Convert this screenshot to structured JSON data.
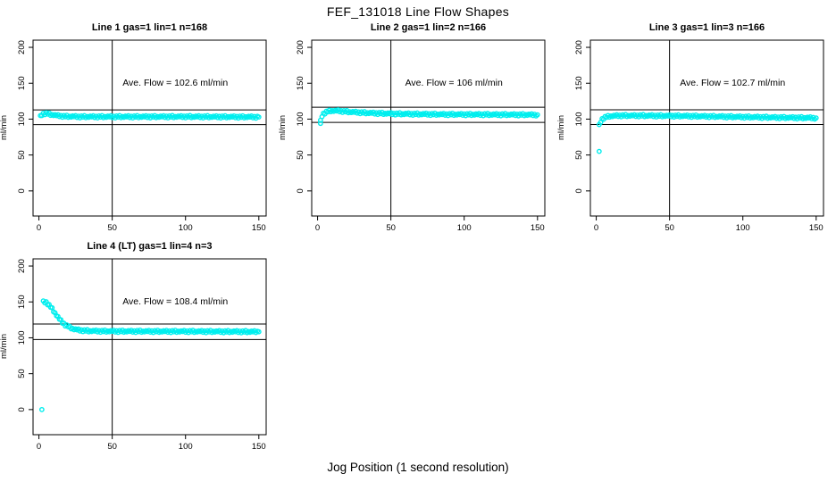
{
  "page": {
    "title": "FEF_131018  Line Flow Shapes",
    "xlabel": "Jog Position (1 second resolution)",
    "background": "#ffffff",
    "point_color": "#00EEEE",
    "axis_color": "#000000"
  },
  "chart_data": [
    {
      "type": "scatter",
      "title": "Line 1 gas=1 lin=1 n=168",
      "ylabel": "ml/min",
      "annotation": "Ave. Flow =  102.6  ml/min",
      "ave_flow": 102.6,
      "n": 168,
      "xlim": [
        -4,
        155
      ],
      "ylim": [
        -35,
        210
      ],
      "xticks": [
        0,
        50,
        100,
        150
      ],
      "yticks": [
        0,
        50,
        100,
        150,
        200
      ],
      "grid": false,
      "ref_vline": 50,
      "ref_hlines": [
        112.9,
        92.3
      ],
      "annotation_pos": [
        93,
        150
      ],
      "series": {
        "step": 1,
        "anchors": [
          [
            1,
            103.5
          ],
          [
            2,
            106
          ],
          [
            3,
            107.5
          ],
          [
            5,
            108
          ],
          [
            8,
            106.5
          ],
          [
            12,
            105
          ],
          [
            18,
            103.8
          ],
          [
            30,
            103.3
          ],
          [
            60,
            103.3
          ],
          [
            100,
            103.4
          ],
          [
            130,
            103.1
          ],
          [
            150,
            102.9
          ]
        ],
        "jitter": [
          1.4,
          -1.1,
          0.7,
          -1.6,
          1.1,
          -0.5,
          1.6,
          -1.3,
          0.3,
          -0.8,
          0.9,
          -0.2
        ]
      },
      "outliers": []
    },
    {
      "type": "scatter",
      "title": "Line 2 gas=1 lin=2 n=166",
      "ylabel": "ml/min",
      "annotation": "Ave. Flow =  106  ml/min",
      "ave_flow": 106,
      "n": 166,
      "xlim": [
        -4,
        155
      ],
      "ylim": [
        -35,
        210
      ],
      "xticks": [
        0,
        50,
        100,
        150
      ],
      "yticks": [
        0,
        50,
        100,
        150,
        200
      ],
      "grid": false,
      "ref_vline": 50,
      "ref_hlines": [
        116.6,
        95.4
      ],
      "annotation_pos": [
        93,
        150
      ],
      "series": {
        "step": 1,
        "anchors": [
          [
            2,
            97
          ],
          [
            3,
            104.5
          ],
          [
            4,
            107.5
          ],
          [
            6,
            110
          ],
          [
            9,
            111.5
          ],
          [
            14,
            111.5
          ],
          [
            22,
            110
          ],
          [
            35,
            108.5
          ],
          [
            55,
            107.3
          ],
          [
            85,
            106.6
          ],
          [
            120,
            106.3
          ],
          [
            150,
            106
          ]
        ],
        "jitter": [
          1.4,
          -1.1,
          0.7,
          -1.6,
          1.1,
          -0.5,
          1.6,
          -1.3,
          0.3,
          -0.8,
          0.9,
          -0.2
        ]
      },
      "outliers": [
        [
          2,
          94
        ]
      ]
    },
    {
      "type": "scatter",
      "title": "Line 3 gas=1 lin=3 n=166",
      "ylabel": "ml/min",
      "annotation": "Ave. Flow =  102.7  ml/min",
      "ave_flow": 102.7,
      "n": 166,
      "xlim": [
        -4,
        155
      ],
      "ylim": [
        -35,
        210
      ],
      "xticks": [
        0,
        50,
        100,
        150
      ],
      "yticks": [
        0,
        50,
        100,
        150,
        200
      ],
      "grid": false,
      "ref_vline": 50,
      "ref_hlines": [
        113.0,
        92.4
      ],
      "annotation_pos": [
        93,
        150
      ],
      "series": {
        "step": 1,
        "anchors": [
          [
            2,
            91
          ],
          [
            3,
            96.5
          ],
          [
            4,
            100
          ],
          [
            6,
            102.5
          ],
          [
            9,
            104
          ],
          [
            15,
            104.8
          ],
          [
            30,
            104.8
          ],
          [
            60,
            104.3
          ],
          [
            90,
            103.3
          ],
          [
            120,
            102.3
          ],
          [
            150,
            101.6
          ]
        ],
        "jitter": [
          1.4,
          -1.1,
          0.7,
          -1.6,
          1.1,
          -0.5,
          1.6,
          -1.3,
          0.3,
          -0.8,
          0.9,
          -0.2
        ]
      },
      "outliers": [
        [
          2,
          55
        ]
      ]
    },
    {
      "type": "scatter",
      "title": "Line 4 (LT) gas=1 lin=4 n=3",
      "ylabel": "ml/min",
      "annotation": "Ave. Flow =  108.4  ml/min",
      "ave_flow": 108.4,
      "n": 3,
      "xlim": [
        -4,
        155
      ],
      "ylim": [
        -35,
        210
      ],
      "xticks": [
        0,
        50,
        100,
        150
      ],
      "yticks": [
        0,
        50,
        100,
        150,
        200
      ],
      "grid": false,
      "ref_vline": 50,
      "ref_hlines": [
        119.2,
        97.6
      ],
      "annotation_pos": [
        93,
        150
      ],
      "series": {
        "step": 1,
        "anchors": [
          [
            3,
            150
          ],
          [
            5,
            149.5
          ],
          [
            6,
            147.5
          ],
          [
            8,
            143
          ],
          [
            10,
            137.5
          ],
          [
            12,
            131.5
          ],
          [
            14,
            126
          ],
          [
            16,
            121.5
          ],
          [
            18,
            118
          ],
          [
            21,
            114.5
          ],
          [
            24,
            112
          ],
          [
            28,
            110.5
          ],
          [
            34,
            109.6
          ],
          [
            45,
            109.2
          ],
          [
            70,
            109
          ],
          [
            110,
            108.8
          ],
          [
            150,
            108.4
          ]
        ],
        "jitter": [
          1.4,
          -1.1,
          0.7,
          -1.6,
          1.1,
          -0.5,
          1.6,
          -1.3,
          0.3,
          -0.8,
          0.9,
          -0.2
        ]
      },
      "outliers": [
        [
          2,
          0
        ]
      ]
    }
  ]
}
